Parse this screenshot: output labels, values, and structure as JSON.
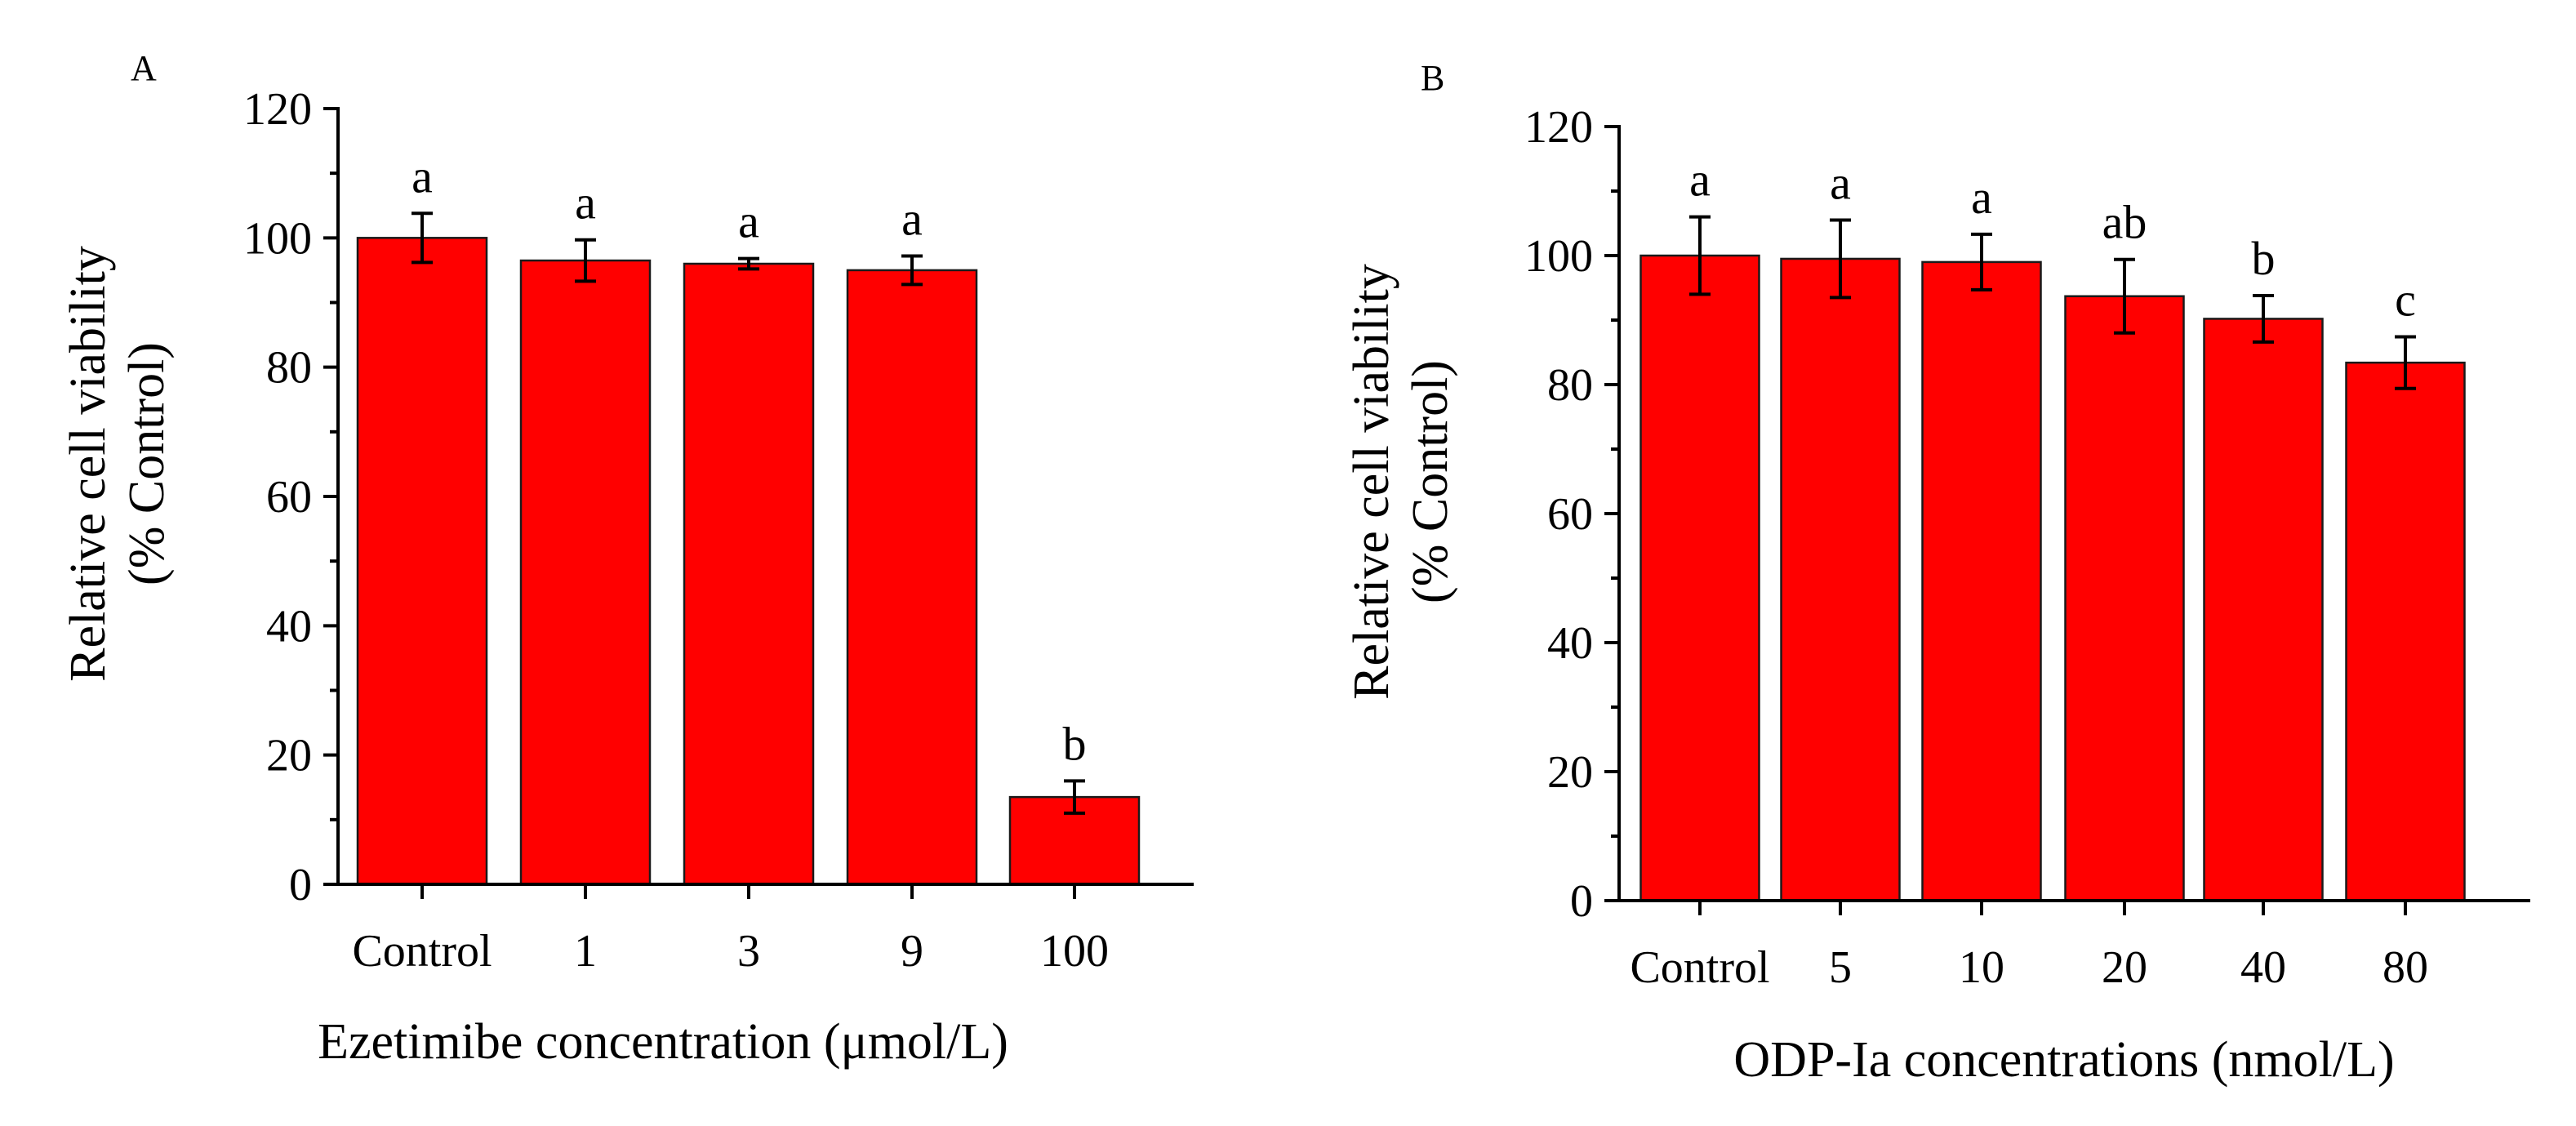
{
  "chart_data": [
    {
      "panel": "A",
      "type": "bar",
      "categories": [
        "Control",
        "1",
        "3",
        "9",
        "100"
      ],
      "values": [
        100,
        96.5,
        96,
        95,
        13.5
      ],
      "errors": [
        3.8,
        3.2,
        0.8,
        2.2,
        2.5
      ],
      "significance": [
        "a",
        "a",
        "a",
        "a",
        "b"
      ],
      "xlabel": "Ezetimibe concentration (μmol/L)",
      "ylabel_line1": "Relative cell viability",
      "ylabel_line2": "(% Control)",
      "ylim": [
        0,
        120
      ],
      "yticks": [
        "0",
        "20",
        "40",
        "60",
        "80",
        "100",
        "120"
      ]
    },
    {
      "panel": "B",
      "type": "bar",
      "categories": [
        "Control",
        "5",
        "10",
        "20",
        "40",
        "80"
      ],
      "values": [
        100,
        99.5,
        99,
        93.7,
        90.2,
        83.4
      ],
      "errors": [
        6,
        6,
        4.3,
        5.7,
        3.6,
        4
      ],
      "significance": [
        "a",
        "a",
        "a",
        "ab",
        "b",
        "c"
      ],
      "xlabel": "ODP-Ia concentrations (nmol/L)",
      "ylabel_line1": "Relative cell viability",
      "ylabel_line2": "(% Control)",
      "ylim": [
        0,
        120
      ],
      "yticks": [
        "0",
        "20",
        "40",
        "60",
        "80",
        "100",
        "120"
      ]
    }
  ],
  "colors": {
    "bar_fill": "#ff0000",
    "bar_stroke": "#1a1a1a",
    "axis": "#000000"
  }
}
